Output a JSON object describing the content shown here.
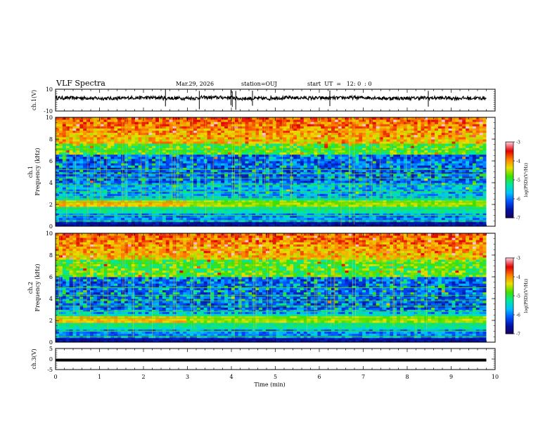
{
  "header": {
    "title": "VLF Spectra",
    "date": "Mar.29, 2026",
    "station": "station=OUJ",
    "start": "start  UT  =   12: 0  : 0"
  },
  "colors": {
    "background": "#ffffff",
    "colormap": [
      "#1a0060",
      "#0010a0",
      "#0050ff",
      "#00c0ff",
      "#00e8a0",
      "#40e000",
      "#e8e000",
      "#ff8000",
      "#e00000",
      "#ffc0d0"
    ]
  },
  "chart_data": [
    {
      "type": "line",
      "panel": "ch1",
      "ylabel": "ch.1(V)",
      "ylim": [
        -10,
        10
      ],
      "yticks": [
        "10",
        "-10"
      ],
      "series": [
        {
          "values": [
            2.0,
            1.6,
            2.2,
            1.8,
            2.4,
            1.5,
            2.1,
            1.9,
            2.3,
            1.7,
            2.0,
            1.8
          ]
        }
      ],
      "spikes_min": [
        2.5,
        3.27,
        3.99,
        4.02,
        4.1,
        4.48,
        6.24,
        8.48
      ]
    },
    {
      "type": "heatmap",
      "panel": "ch1-spectrogram",
      "ylabel": "ch.1\nFrequency (kHz)",
      "ylim": [
        0,
        10
      ],
      "yticks": [
        "0",
        "2",
        "4",
        "6",
        "8",
        "10"
      ],
      "colorbar": {
        "label": "log(PSD)(V²/Hz)",
        "range": [
          -7,
          -3
        ],
        "ticks": [
          "-3",
          "-4",
          "-5",
          "-6",
          "-7"
        ]
      },
      "bands_khz": [
        0.5,
        1.0,
        1.6,
        2.2,
        2.7,
        3.2,
        3.8,
        4.4,
        4.8,
        5.2,
        7.0
      ],
      "strong_band_khz": [
        1.9,
        2.4
      ],
      "dark_region_khz": [
        4.0,
        6.5
      ]
    },
    {
      "type": "heatmap",
      "panel": "ch2-spectrogram",
      "ylabel": "ch.2\nFrequency (kHz)",
      "ylim": [
        0,
        10
      ],
      "yticks": [
        "0",
        "2",
        "4",
        "6",
        "8",
        "10"
      ],
      "colorbar": {
        "label": "log(PSD)(V²/Hz)",
        "range": [
          -7,
          -3
        ],
        "ticks": [
          "-3",
          "-4",
          "-5",
          "-6",
          "-7"
        ]
      },
      "bands_khz": [
        0.5,
        1.0,
        1.6,
        2.2,
        2.8,
        3.3,
        3.8,
        4.3,
        5.0,
        7.2
      ],
      "strong_band_khz": [
        1.8,
        2.4
      ],
      "dark_region_khz": [
        3.0,
        6.0
      ]
    },
    {
      "type": "line",
      "panel": "ch3",
      "ylabel": "ch.3(V)",
      "ylim": [
        -5,
        5
      ],
      "yticks": [
        "5",
        "0",
        "-5"
      ],
      "series": [
        {
          "values": [
            -0.5,
            -0.5,
            -0.5,
            -0.5,
            -0.5
          ]
        }
      ]
    }
  ],
  "xaxis": {
    "xlabel": "Time (min)",
    "xlim": [
      0,
      10
    ],
    "xticks": [
      "0",
      "1",
      "2",
      "3",
      "4",
      "5",
      "6",
      "7",
      "8",
      "9",
      "10"
    ],
    "data_end_min": 9.8
  }
}
